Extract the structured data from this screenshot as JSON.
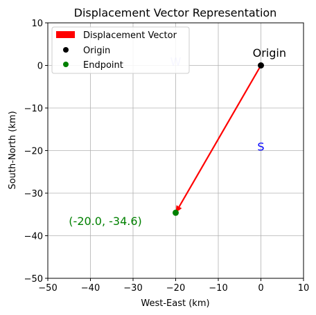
{
  "chart_data": {
    "type": "scatter",
    "title": "Displacement Vector Representation",
    "xlabel": "West-East (km)",
    "ylabel": "South-North (km)",
    "xlim": [
      -50,
      10
    ],
    "ylim": [
      -50,
      10
    ],
    "xticks": [
      -50,
      -40,
      -30,
      -20,
      -10,
      0,
      10
    ],
    "yticks": [
      -50,
      -40,
      -30,
      -20,
      -10,
      0,
      10
    ],
    "grid": true,
    "legend_position": "top-left",
    "vector": {
      "name": "Displacement Vector",
      "from": [
        0,
        0
      ],
      "to": [
        -20,
        -34.6
      ],
      "color": "#ff0000"
    },
    "points": [
      {
        "name": "Origin",
        "x": 0,
        "y": 0,
        "color": "#000000"
      },
      {
        "name": "Endpoint",
        "x": -20,
        "y": -34.6,
        "color": "#008000"
      }
    ],
    "annotations": [
      {
        "text": "Origin",
        "x": 2,
        "y": 3,
        "color": "#000000",
        "opacity": 1
      },
      {
        "text": "(-20.0, -34.6)",
        "x": -36.5,
        "y": -36.5,
        "color": "#008000",
        "opacity": 1
      },
      {
        "text": "S",
        "x": 0,
        "y": -19,
        "color": "#0000ff",
        "opacity": 1
      },
      {
        "text": "W",
        "x": -20,
        "y": 1,
        "color": "#0000ff",
        "opacity": 0.25
      }
    ]
  }
}
